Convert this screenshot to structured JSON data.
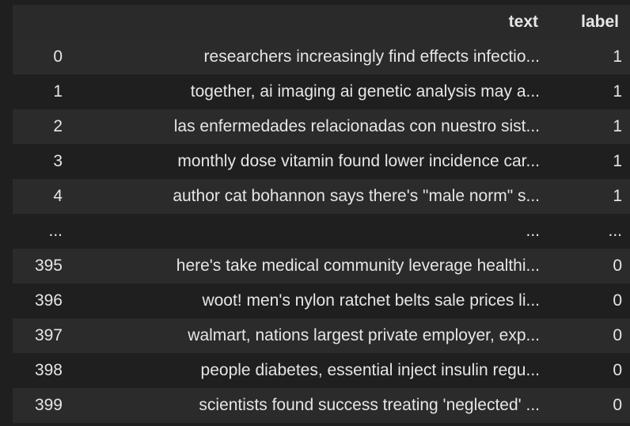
{
  "columns": {
    "index": "",
    "text": "text",
    "label": "label"
  },
  "rows": [
    {
      "index": "0",
      "text": "researchers increasingly find effects infectio...",
      "label": "1"
    },
    {
      "index": "1",
      "text": "together, ai imaging ai genetic analysis may a...",
      "label": "1"
    },
    {
      "index": "2",
      "text": "las enfermedades relacionadas con nuestro sist...",
      "label": "1"
    },
    {
      "index": "3",
      "text": "monthly dose vitamin found lower incidence car...",
      "label": "1"
    },
    {
      "index": "4",
      "text": "author cat bohannon says there's \"male norm\" s...",
      "label": "1"
    },
    {
      "index": "...",
      "text": "...",
      "label": "..."
    },
    {
      "index": "395",
      "text": "here's take medical community leverage healthi...",
      "label": "0"
    },
    {
      "index": "396",
      "text": "woot! men's nylon ratchet belts sale prices li...",
      "label": "0"
    },
    {
      "index": "397",
      "text": "walmart, nations largest private employer, exp...",
      "label": "0"
    },
    {
      "index": "398",
      "text": "people diabetes, essential inject insulin regu...",
      "label": "0"
    },
    {
      "index": "399",
      "text": "scientists found success treating 'neglected' ...",
      "label": "0"
    }
  ]
}
